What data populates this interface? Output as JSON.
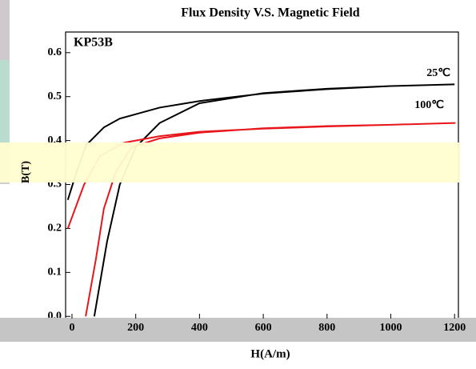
{
  "chart_data": {
    "type": "line",
    "title": "Flux Density V.S. Magnetic Field",
    "x_label": "H(A/m)",
    "y_label": "B(T)",
    "annotations": [
      "KP53B"
    ],
    "xlim": [
      -20,
      1212
    ],
    "ylim": [
      -0.005,
      0.647
    ],
    "xticks": [
      0,
      200,
      400,
      600,
      800,
      1000,
      1200
    ],
    "yticks": [
      {
        "value": 0,
        "label": "0.0"
      },
      0.1,
      0.2,
      0.3,
      0.4,
      0.5,
      0.6
    ],
    "series": [
      {
        "name": "25℃",
        "color": "#000000",
        "x": [
          70,
          110,
          150,
          200,
          275,
          400,
          600,
          800,
          1000,
          1200,
          1000,
          800,
          600,
          400,
          275,
          150,
          100,
          45,
          15,
          -13
        ],
        "values": [
          0,
          0.17,
          0.3,
          0.385,
          0.44,
          0.485,
          0.508,
          0.518,
          0.524,
          0.528,
          0.524,
          0.517,
          0.507,
          0.49,
          0.475,
          0.45,
          0.43,
          0.39,
          0.33,
          0.265
        ]
      },
      {
        "name": "100℃",
        "color": "#e8161b",
        "x": [
          43,
          75,
          100,
          138,
          188,
          275,
          400,
          600,
          800,
          1000,
          1203,
          1000,
          800,
          600,
          400,
          275,
          163,
          88,
          38,
          -13
        ],
        "values": [
          0,
          0.13,
          0.245,
          0.33,
          0.385,
          0.405,
          0.418,
          0.428,
          0.433,
          0.436,
          0.44,
          0.436,
          0.432,
          0.427,
          0.42,
          0.41,
          0.395,
          0.365,
          0.3,
          0.2
        ]
      }
    ]
  }
}
